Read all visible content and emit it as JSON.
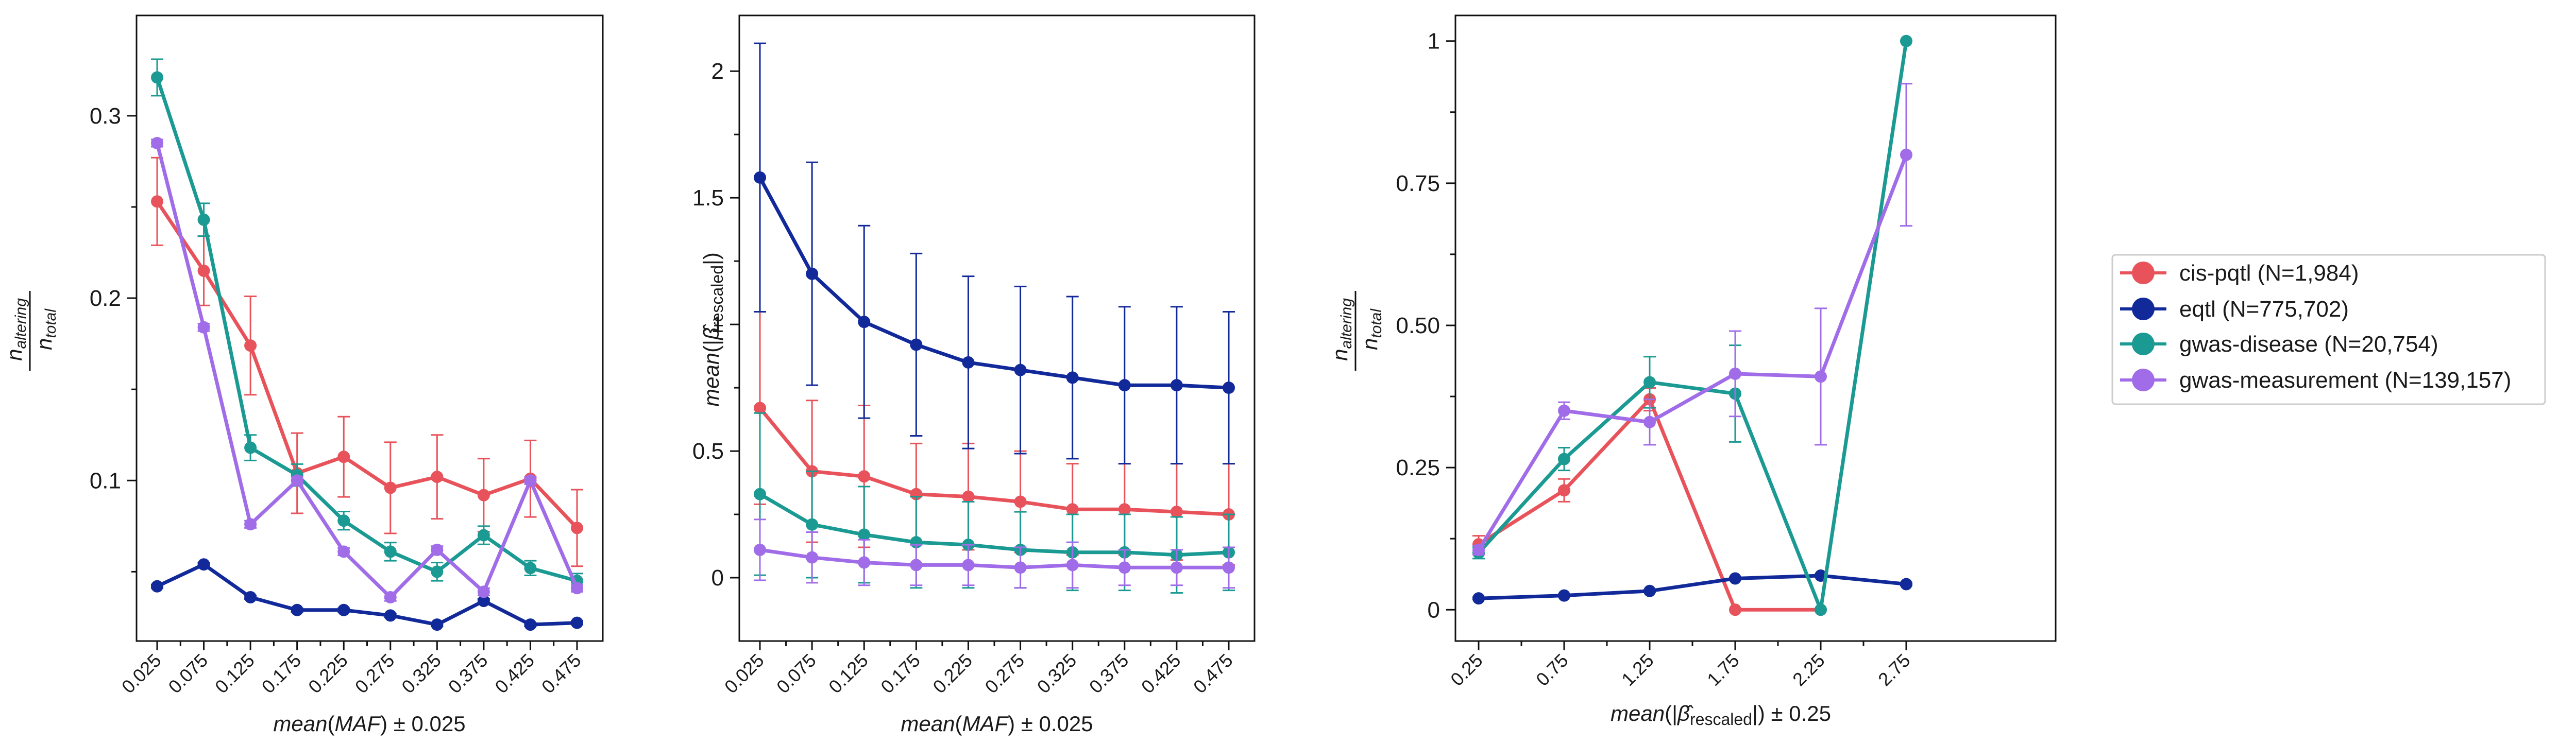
{
  "series_styles": [
    {
      "key": "cis",
      "color": "#e8535b"
    },
    {
      "key": "eqtl",
      "color": "#12299a"
    },
    {
      "key": "disease",
      "color": "#1b9a93"
    },
    {
      "key": "measurement",
      "color": "#a06ce8"
    }
  ],
  "legend": {
    "placement": "right",
    "entries": [
      "cis-pqtl (N=1,984)",
      "eqtl (N=775,702)",
      "gwas-disease (N=20,754)",
      "gwas-measurement (N=139,157)"
    ]
  },
  "chart_data": [
    {
      "type": "line",
      "xlabel": "mean(MAF) ± 0.025",
      "ylabel_num": "n_altering",
      "ylabel_den": "n_total",
      "x_ticks": [
        "0.025",
        "0.075",
        "0.125",
        "0.175",
        "0.225",
        "0.275",
        "0.325",
        "0.375",
        "0.425",
        "0.475"
      ],
      "y_ticks": [
        "0.1",
        "0.2",
        "0.3"
      ],
      "y_tick_values": [
        0.1,
        0.2,
        0.3
      ],
      "y_minor_ticks": [
        0.05,
        0.15,
        0.25
      ],
      "ylim": [
        0.012,
        0.355
      ],
      "series": [
        {
          "key": "cis",
          "values": [
            0.253,
            0.215,
            0.174,
            0.104,
            0.113,
            0.096,
            0.102,
            0.092,
            0.101,
            0.074
          ],
          "err": [
            0.024,
            0.019,
            0.027,
            0.022,
            0.022,
            0.025,
            0.023,
            0.02,
            0.021,
            0.021
          ]
        },
        {
          "key": "eqtl",
          "values": [
            0.042,
            0.054,
            0.036,
            0.029,
            0.029,
            0.026,
            0.021,
            0.034,
            0.021,
            0.022
          ],
          "err": [
            0.001,
            0.001,
            0.001,
            0.001,
            0.001,
            0.001,
            0.001,
            0.001,
            0.001,
            0.001
          ]
        },
        {
          "key": "disease",
          "values": [
            0.321,
            0.243,
            0.118,
            0.103,
            0.078,
            0.061,
            0.05,
            0.07,
            0.052,
            0.045
          ],
          "err": [
            0.01,
            0.009,
            0.007,
            0.006,
            0.005,
            0.005,
            0.005,
            0.005,
            0.004,
            0.004
          ]
        },
        {
          "key": "measurement",
          "values": [
            0.285,
            0.184,
            0.076,
            0.1,
            0.061,
            0.036,
            0.062,
            0.039,
            0.1,
            0.041
          ],
          "err": [
            0.002,
            0.002,
            0.002,
            0.002,
            0.002,
            0.002,
            0.002,
            0.002,
            0.002,
            0.002
          ]
        }
      ]
    },
    {
      "type": "line",
      "xlabel": "mean(MAF) ± 0.025",
      "ylabel": "mean(|β̂rescaled|)",
      "x_ticks": [
        "0.025",
        "0.075",
        "0.125",
        "0.175",
        "0.225",
        "0.275",
        "0.325",
        "0.375",
        "0.425",
        "0.475"
      ],
      "y_ticks": [
        "0",
        "0.5",
        "1",
        "1.5",
        "2"
      ],
      "y_tick_values": [
        0,
        0.5,
        1,
        1.5,
        2
      ],
      "y_minor_ticks": [
        0.25,
        0.75,
        1.25,
        1.75
      ],
      "ylim": [
        -0.25,
        2.22
      ],
      "series": [
        {
          "key": "cis",
          "values": [
            0.67,
            0.42,
            0.4,
            0.33,
            0.32,
            0.3,
            0.27,
            0.27,
            0.26,
            0.25
          ],
          "err": [
            0.38,
            0.28,
            0.28,
            0.2,
            0.21,
            0.2,
            0.18,
            0.18,
            0.19,
            0.2
          ]
        },
        {
          "key": "eqtl",
          "values": [
            1.58,
            1.2,
            1.01,
            0.92,
            0.85,
            0.82,
            0.79,
            0.76,
            0.76,
            0.75
          ],
          "err": [
            0.53,
            0.44,
            0.38,
            0.36,
            0.34,
            0.33,
            0.32,
            0.31,
            0.31,
            0.3
          ]
        },
        {
          "key": "disease",
          "values": [
            0.33,
            0.21,
            0.17,
            0.14,
            0.13,
            0.11,
            0.1,
            0.1,
            0.09,
            0.1
          ],
          "err": [
            0.32,
            0.21,
            0.19,
            0.18,
            0.17,
            0.15,
            0.15,
            0.15,
            0.15,
            0.15
          ]
        },
        {
          "key": "measurement",
          "values": [
            0.11,
            0.08,
            0.06,
            0.05,
            0.05,
            0.04,
            0.05,
            0.04,
            0.04,
            0.04
          ],
          "err": [
            0.12,
            0.1,
            0.09,
            0.08,
            0.08,
            0.08,
            0.09,
            0.07,
            0.07,
            0.08
          ]
        }
      ]
    },
    {
      "type": "line",
      "xlabel": "mean(|β̂rescaled|) ± 0.25",
      "ylabel_num": "n_altering",
      "ylabel_den": "n_total",
      "x_ticks": [
        "0.25",
        "0.75",
        "1.25",
        "1.75",
        "2.25",
        "2.75"
      ],
      "y_ticks": [
        "0",
        "0.25",
        "0.50",
        "0.75",
        "1"
      ],
      "y_tick_values": [
        0,
        0.25,
        0.5,
        0.75,
        1
      ],
      "y_minor_ticks": [
        0.125,
        0.375,
        0.625,
        0.875
      ],
      "ylim": [
        -0.055,
        1.045
      ],
      "series": [
        {
          "key": "cis",
          "values": [
            0.115,
            0.21,
            0.37,
            0.0,
            0.0,
            null
          ],
          "err": [
            0.015,
            0.02,
            0.02,
            0,
            0,
            0
          ]
        },
        {
          "key": "eqtl",
          "values": [
            0.02,
            0.025,
            0.033,
            0.055,
            0.06,
            0.045
          ],
          "err": [
            0.002,
            0.002,
            0.002,
            0.002,
            0.002,
            0.002
          ]
        },
        {
          "key": "disease",
          "values": [
            0.1,
            0.265,
            0.4,
            0.38,
            0.0,
            1.0
          ],
          "err": [
            0.01,
            0.02,
            0.045,
            0.085,
            0,
            0
          ]
        },
        {
          "key": "measurement",
          "values": [
            0.105,
            0.35,
            0.33,
            0.415,
            0.41,
            0.8
          ],
          "err": [
            0.008,
            0.015,
            0.04,
            0.075,
            0.12,
            0.125
          ]
        }
      ]
    }
  ]
}
